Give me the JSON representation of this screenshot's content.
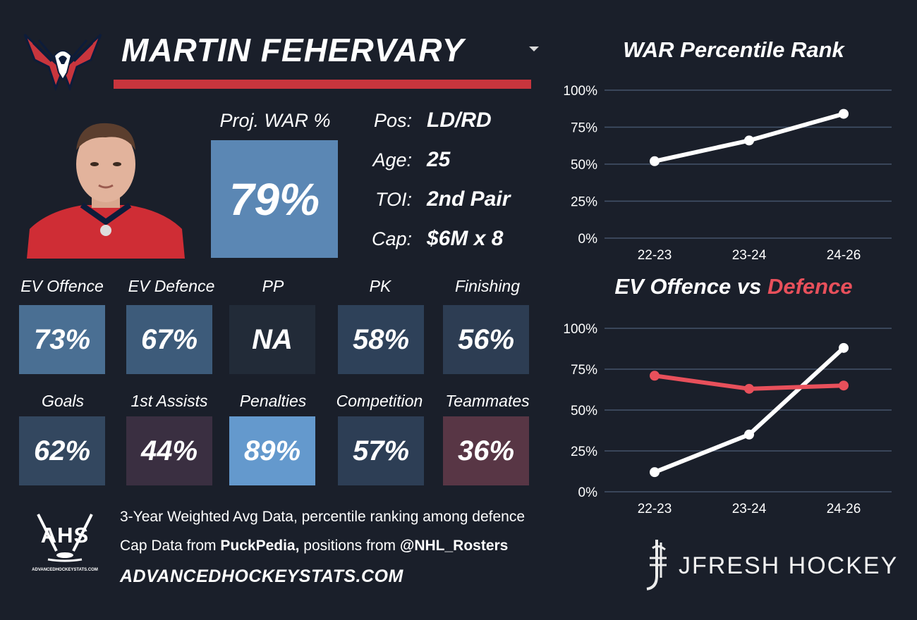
{
  "player": {
    "name": "MARTIN FEHERVARY",
    "proj_war_label": "Proj. WAR %",
    "proj_war_value": "79%"
  },
  "info": [
    {
      "label": "Pos:",
      "value": "LD/RD"
    },
    {
      "label": "Age:",
      "value": "25"
    },
    {
      "label": "TOI:",
      "value": "2nd Pair"
    },
    {
      "label": "Cap:",
      "value": "$6M x 8"
    }
  ],
  "stats": [
    {
      "label": "EV Offence",
      "value": "73%",
      "color": "#4a6f93"
    },
    {
      "label": "EV Defence",
      "value": "67%",
      "color": "#3d5b7a"
    },
    {
      "label": "PP",
      "value": "NA",
      "color": "#222b38"
    },
    {
      "label": "PK",
      "value": "58%",
      "color": "#2e4159"
    },
    {
      "label": "Finishing",
      "value": "56%",
      "color": "#2d3d53"
    },
    {
      "label": "Goals",
      "value": "62%",
      "color": "#33475f"
    },
    {
      "label": "1st Assists",
      "value": "44%",
      "color": "#3a2f41"
    },
    {
      "label": "Penalties",
      "value": "89%",
      "color": "#6499cd"
    },
    {
      "label": "Competition",
      "value": "57%",
      "color": "#2d3e55"
    },
    {
      "label": "Teammates",
      "value": "36%",
      "color": "#583645"
    }
  ],
  "footer": {
    "line1": "3-Year Weighted Avg Data, percentile ranking among defence",
    "line2_prefix": "Cap Data from ",
    "line2_bold1": "PuckPedia,",
    "line2_mid": " positions from ",
    "line2_bold2": "@NHL_Rosters",
    "site": "ADVANCEDHOCKEYSTATS.COM",
    "ahs_logo_text": "AHS",
    "ahs_logo_small": "ADVANCEDHOCKEYSTATS.COM",
    "brand": "JFRESH HOCKEY"
  },
  "colors": {
    "accent_red": "#c8353d",
    "defence_line": "#e8505b",
    "offence_line": "#ffffff",
    "grid": "#44546b"
  },
  "icons": [
    "capitals-logo",
    "player-headshot",
    "dropdown-icon",
    "ahs-logo",
    "jfresh-logo"
  ],
  "chart_data": [
    {
      "type": "line",
      "title": "WAR Percentile Rank",
      "categories": [
        "22-23",
        "23-24",
        "24-26"
      ],
      "series": [
        {
          "values": [
            52,
            66,
            84
          ]
        }
      ],
      "ylim": [
        0,
        100
      ],
      "yticks": [
        "0%",
        "25%",
        "50%",
        "75%",
        "100%"
      ],
      "grid": true
    },
    {
      "type": "line",
      "title_part1": "EV Offence vs ",
      "title_part2": "Defence",
      "categories": [
        "22-23",
        "23-24",
        "24-26"
      ],
      "series": [
        {
          "values": [
            12,
            35,
            88
          ],
          "color": "#ffffff"
        },
        {
          "values": [
            71,
            63,
            65
          ],
          "color": "#e8505b"
        }
      ],
      "ylim": [
        0,
        100
      ],
      "yticks": [
        "0%",
        "25%",
        "50%",
        "75%",
        "100%"
      ],
      "grid": true
    }
  ]
}
